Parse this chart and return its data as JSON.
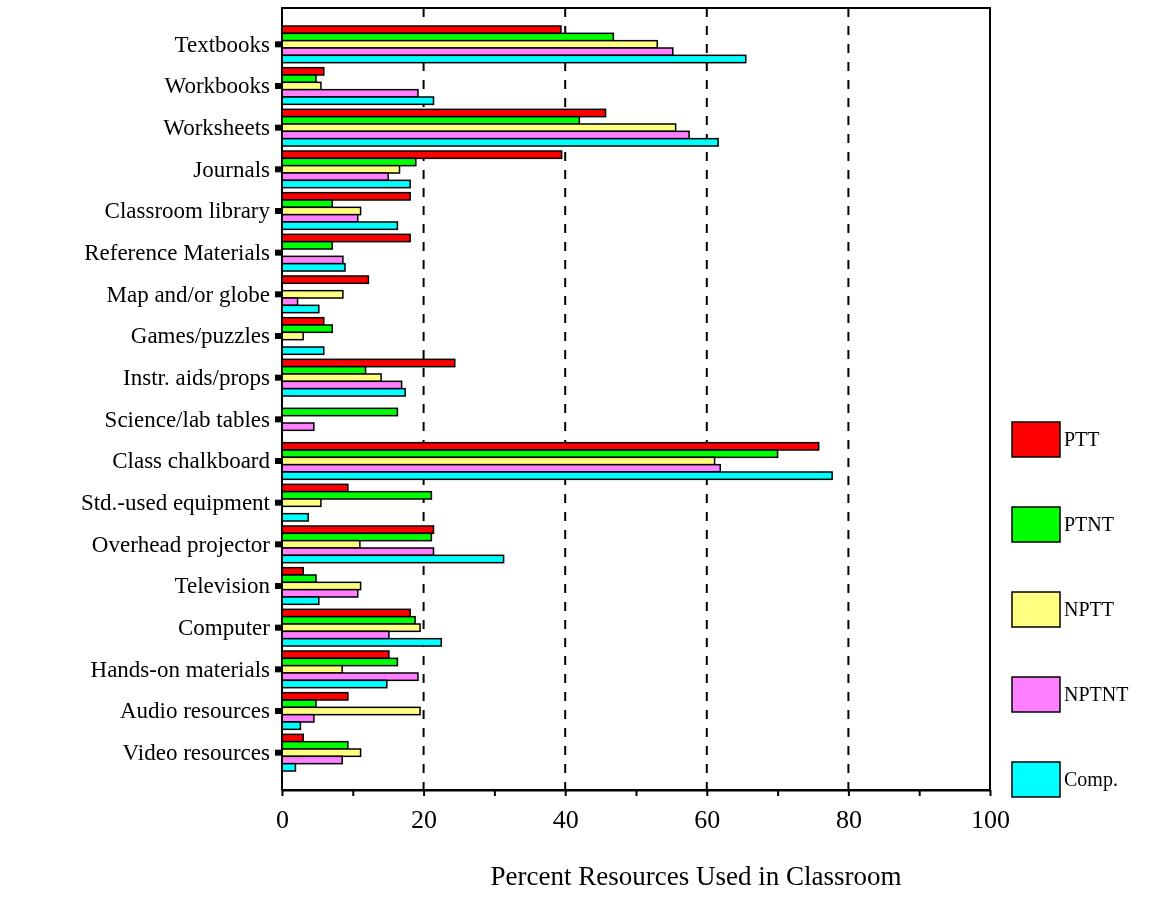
{
  "chart_data": {
    "type": "bar",
    "orientation": "horizontal",
    "xlabel": "Percent Resources Used in Classroom",
    "categories": [
      "Textbooks",
      "Workbooks",
      "Worksheets",
      "Journals",
      "Classroom library",
      "Reference Materials",
      "Map and/or globe",
      "Games/puzzles",
      "Instr. aids/props",
      "Science/lab tables",
      "Class chalkboard",
      "Std.-used equipment",
      "Overhead projector",
      "Television",
      "Computer",
      "Hands-on materials",
      "Audio resources",
      "Video resources"
    ],
    "series": [
      {
        "name": "PTT",
        "color": "#ff0000",
        "values": [
          39.4,
          5.9,
          45.7,
          39.5,
          18.1,
          18.1,
          12.2,
          5.9,
          24.4,
          0,
          75.8,
          9.3,
          21.4,
          3.0,
          18.1,
          15.1,
          9.3,
          3.0
        ]
      },
      {
        "name": "PTNT",
        "color": "#00ff00",
        "values": [
          46.8,
          4.8,
          42.0,
          18.9,
          7.1,
          7.1,
          0,
          7.1,
          11.8,
          16.3,
          70.0,
          21.1,
          21.1,
          4.8,
          18.8,
          16.3,
          4.8,
          9.3
        ]
      },
      {
        "name": "NPTT",
        "color": "#ffff80",
        "values": [
          53.0,
          5.5,
          55.6,
          16.6,
          11.1,
          0,
          8.6,
          3.0,
          14.0,
          0,
          61.1,
          5.5,
          11.0,
          11.1,
          19.5,
          8.5,
          19.5,
          11.1
        ]
      },
      {
        "name": "NPTNT",
        "color": "#ff80ff",
        "values": [
          55.2,
          19.2,
          57.5,
          15.0,
          10.7,
          8.6,
          2.2,
          0,
          16.9,
          4.5,
          61.9,
          0,
          21.4,
          10.7,
          15.1,
          19.2,
          4.5,
          8.5
        ]
      },
      {
        "name": "Comp.",
        "color": "#00ffff",
        "values": [
          65.5,
          21.4,
          61.6,
          18.1,
          16.3,
          8.9,
          5.2,
          5.9,
          17.4,
          0,
          77.7,
          3.7,
          31.3,
          5.2,
          22.5,
          14.8,
          2.6,
          1.9
        ]
      }
    ],
    "xlim": [
      0,
      100
    ],
    "xticks": [
      0,
      {
        "value": 10,
        "label": null
      },
      20,
      {
        "value": 30,
        "label": null
      },
      40,
      {
        "value": 50,
        "label": null
      },
      60,
      {
        "value": 70,
        "label": null
      },
      80,
      {
        "value": 90,
        "label": null
      },
      100
    ],
    "grid": "x",
    "legend": "right"
  }
}
